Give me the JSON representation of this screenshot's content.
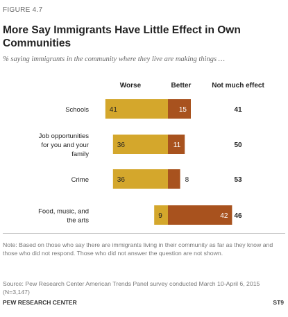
{
  "figure_label": "FIGURE 4.7",
  "title": "More Say Immigrants Have Little Effect in Own Communities",
  "subtitle": "% saying immigrants in the community where they live are making things …",
  "colors": {
    "worse": "#d4a72c",
    "better": "#a8521e",
    "text": "#222222"
  },
  "chart_data": {
    "type": "bar",
    "stacked": "diverging",
    "columns": [
      "Worse",
      "Better",
      "Not much effect"
    ],
    "categories": [
      {
        "label": [
          "Schools"
        ],
        "worse": 41,
        "better": 15,
        "no_effect": 41
      },
      {
        "label": [
          "Job opportunities",
          "for you and your",
          "family"
        ],
        "worse": 36,
        "better": 11,
        "no_effect": 50
      },
      {
        "label": [
          "Crime"
        ],
        "worse": 36,
        "better": 8,
        "no_effect": 53
      },
      {
        "label": [
          "Food, music, and",
          "the arts"
        ],
        "worse": 9,
        "better": 42,
        "no_effect": 46
      }
    ]
  },
  "note": "Note: Based on those who say there are immigrants living in their community as far as they know and those who did not respond. Those who did not answer the question are not shown.",
  "source": "Source: Pew Research Center American Trends Panel survey conducted March 10-April 6, 2015 (N=3,147)",
  "footer_left": "PEW RESEARCH CENTER",
  "footer_right": "ST9"
}
